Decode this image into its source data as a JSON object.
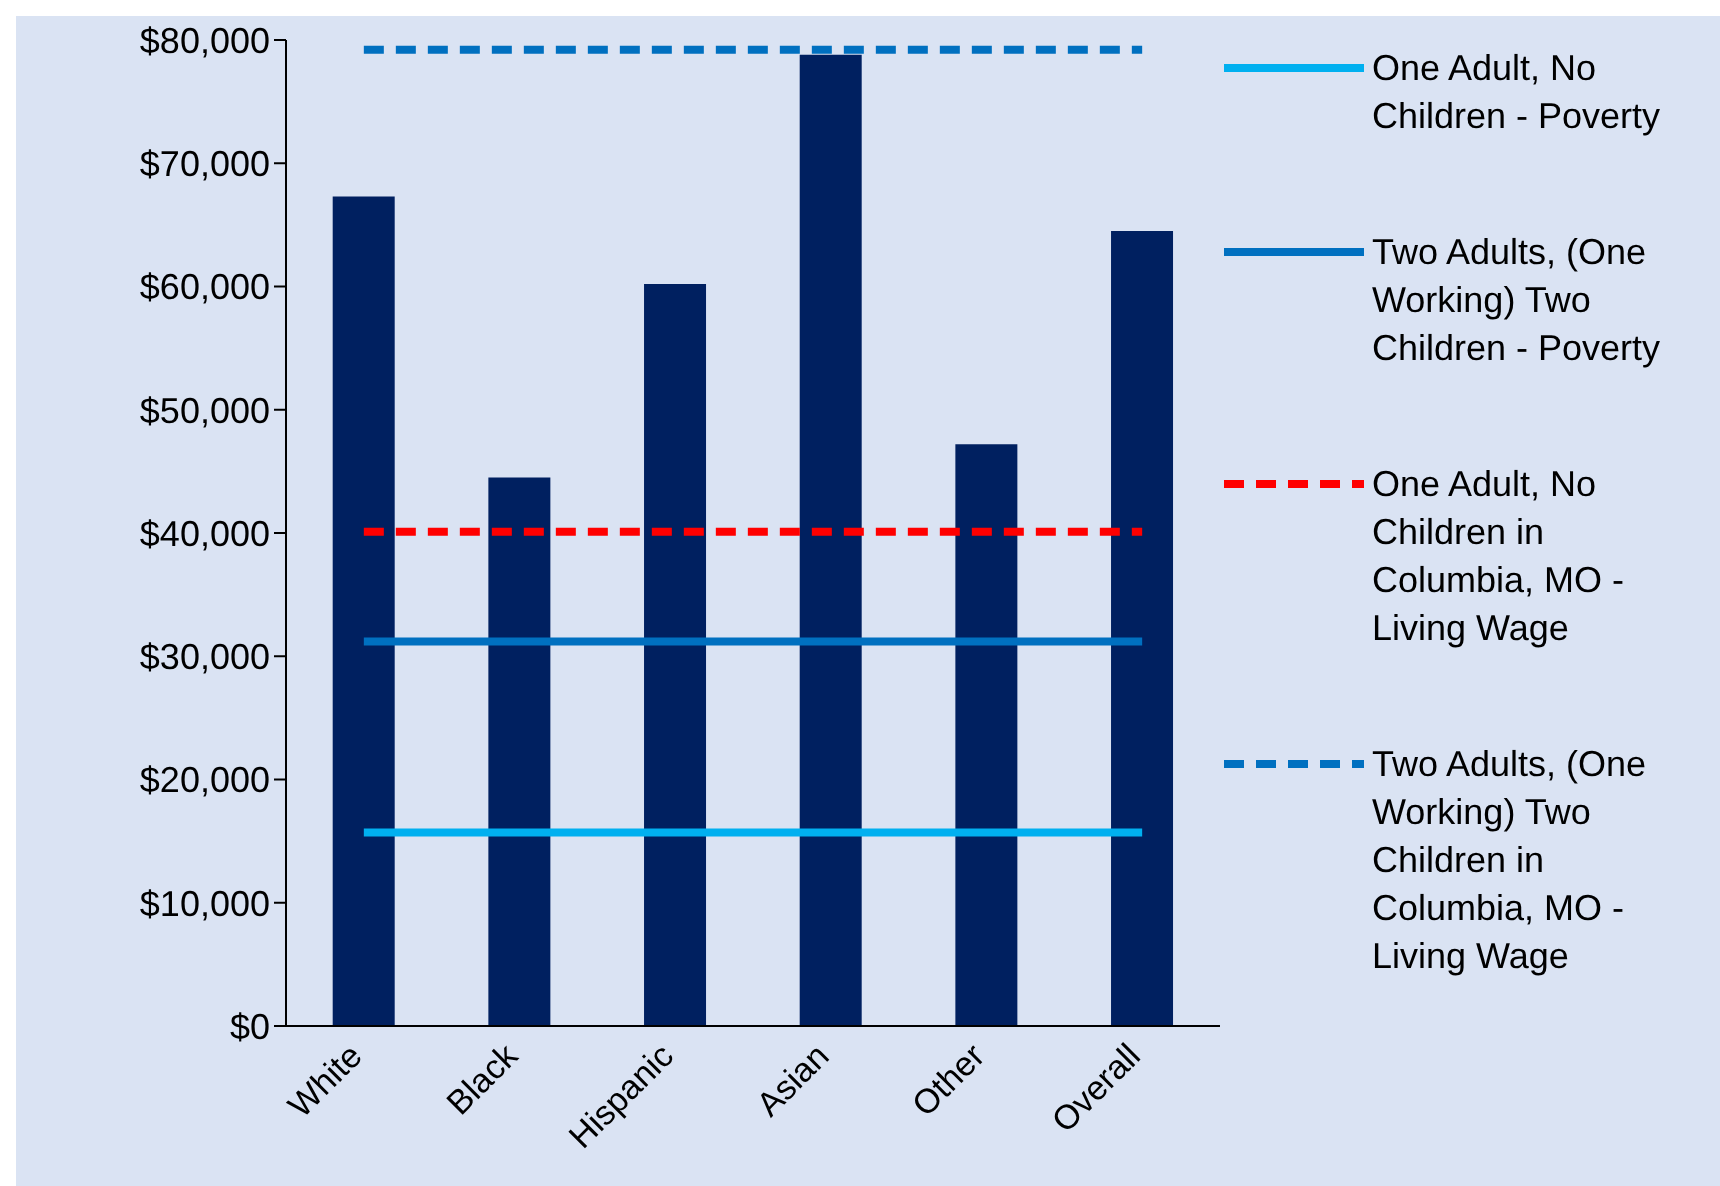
{
  "chart_data": {
    "type": "bar",
    "categories": [
      "White",
      "Black",
      "Hispanic",
      "Asian",
      "Other",
      "Overall"
    ],
    "series": [
      {
        "color": "#002060",
        "values": [
          67300,
          44500,
          60200,
          78800,
          47200,
          64500
        ]
      },
      {
        "type": "line",
        "name": "One Adult, No Children - Poverty",
        "color": "#00b0f0",
        "line_style": "solid",
        "values": [
          15700,
          15700,
          15700,
          15700,
          15700,
          15700
        ]
      },
      {
        "type": "line",
        "name": "Two Adults, (One Working) Two Children - Poverty",
        "color": "#0070c0",
        "line_style": "solid",
        "values": [
          31200,
          31200,
          31200,
          31200,
          31200,
          31200
        ]
      },
      {
        "type": "line",
        "name": "One Adult, No Children in Columbia, MO - Living Wage",
        "color": "#ff0000",
        "line_style": "dashed",
        "values": [
          40100,
          40100,
          40100,
          40100,
          40100,
          40100
        ]
      },
      {
        "type": "line",
        "name": "Two Adults, (One Working) Two Children in Columbia, MO - Living Wage",
        "color": "#0070c0",
        "line_style": "dashed",
        "values": [
          79200,
          79200,
          79200,
          79200,
          79200,
          79200
        ]
      }
    ],
    "ylim": [
      0,
      80000
    ],
    "yticks": [
      {
        "value": 0,
        "label": "$0"
      },
      {
        "value": 10000,
        "label": "$10,000"
      },
      {
        "value": 20000,
        "label": "$20,000"
      },
      {
        "value": 30000,
        "label": "$30,000"
      },
      {
        "value": 40000,
        "label": "$40,000"
      },
      {
        "value": 50000,
        "label": "$50,000"
      },
      {
        "value": 60000,
        "label": "$60,000"
      },
      {
        "value": 70000,
        "label": "$70,000"
      },
      {
        "value": 80000,
        "label": "$80,000"
      }
    ],
    "grid": false,
    "legend": "right",
    "marker": "none"
  }
}
